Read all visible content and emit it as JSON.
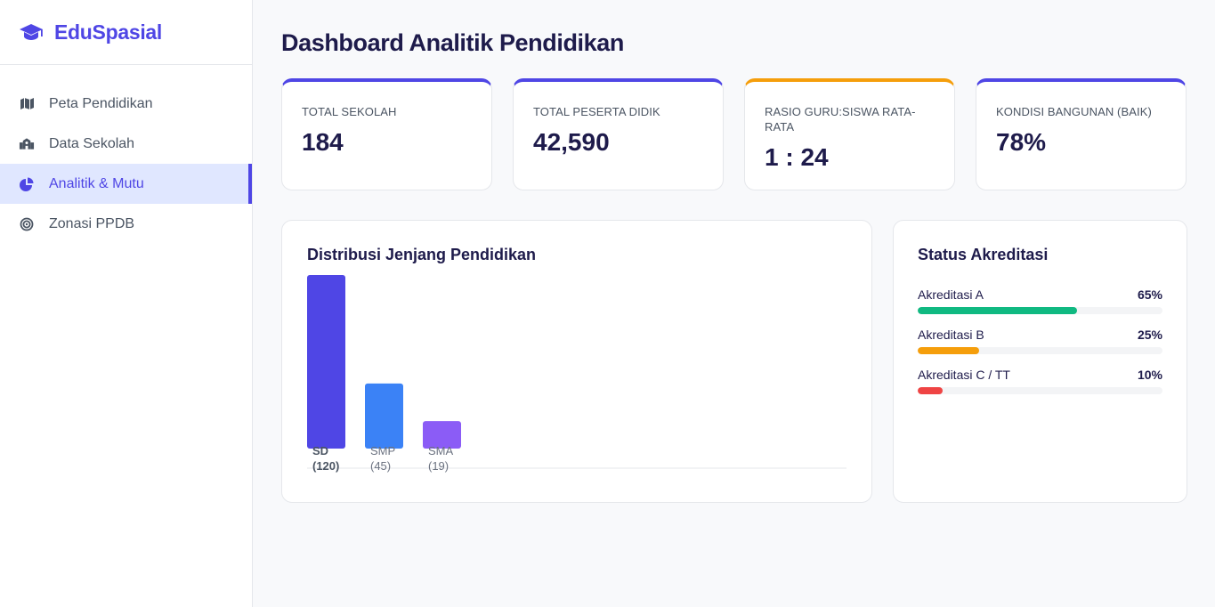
{
  "brand": {
    "name": "EduSpasial",
    "icon": "graduation-cap-icon",
    "color": "#4f46e5"
  },
  "nav": {
    "items": [
      {
        "label": "Peta Pendidikan",
        "icon": "map-icon",
        "active": false
      },
      {
        "label": "Data Sekolah",
        "icon": "school-icon",
        "active": false
      },
      {
        "label": "Analitik & Mutu",
        "icon": "pie-chart-icon",
        "active": true
      },
      {
        "label": "Zonasi PPDB",
        "icon": "target-icon",
        "active": false
      }
    ]
  },
  "page": {
    "title": "Dashboard Analitik Pendidikan"
  },
  "stats": [
    {
      "label": "TOTAL SEKOLAH",
      "value": "184",
      "accent": "#4f46e5"
    },
    {
      "label": "TOTAL PESERTA DIDIK",
      "value": "42,590",
      "accent": "#4f46e5"
    },
    {
      "label": "RASIO GURU:SISWA RATA-RATA",
      "value": "1 : 24",
      "accent": "#f59e0b"
    },
    {
      "label": "KONDISI BANGUNAN (BAIK)",
      "value": "78%",
      "accent": "#4f46e5"
    }
  ],
  "distribution": {
    "title": "Distribusi Jenjang Pendidikan",
    "label_lines": [
      [
        "SD",
        "(120)"
      ],
      [
        "SMP",
        "(45)"
      ],
      [
        "SMA",
        "(19)"
      ]
    ]
  },
  "chart_data": {
    "type": "bar",
    "categories": [
      "SD",
      "SMP",
      "SMA"
    ],
    "values": [
      120,
      45,
      19
    ],
    "colors": [
      "#4f46e5",
      "#3b82f6",
      "#8b5cf6"
    ],
    "ylim": [
      0,
      120
    ],
    "grid": false
  },
  "accreditation": {
    "title": "Status Akreditasi",
    "items": [
      {
        "label": "Akreditasi A",
        "pct_text": "65%",
        "value": 65,
        "color": "#10b981"
      },
      {
        "label": "Akreditasi B",
        "pct_text": "25%",
        "value": 25,
        "color": "#f59e0b"
      },
      {
        "label": "Akreditasi C / TT",
        "pct_text": "10%",
        "value": 10,
        "color": "#ef4444"
      }
    ]
  }
}
